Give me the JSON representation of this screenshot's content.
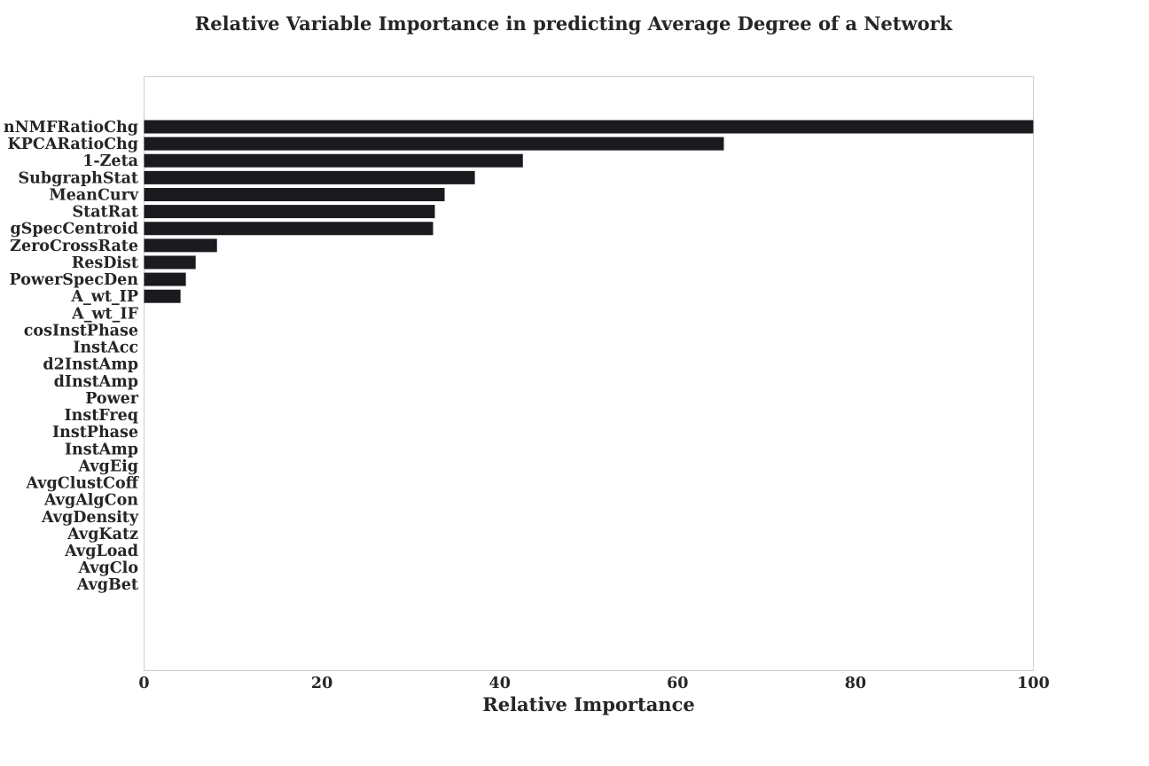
{
  "chart_data": {
    "type": "bar",
    "orientation": "horizontal",
    "title": "Relative Variable Importance in predicting Average Degree of a Network",
    "xlabel": "Relative Importance",
    "ylabel": "",
    "xlim": [
      0,
      100
    ],
    "xticks": [
      "0",
      "20",
      "40",
      "60",
      "80",
      "100"
    ],
    "grid": false,
    "bar_color": "#1a1a1f",
    "categories": [
      "nNMFRatioChg",
      "KPCARatioChg",
      "1-Zeta",
      "SubgraphStat",
      "MeanCurv",
      "StatRat",
      "gSpecCentroid",
      "ZeroCrossRate",
      "ResDist",
      "PowerSpecDen",
      "A_wt_IP",
      "A_wt_IF",
      "cosInstPhase",
      "InstAcc",
      "d2InstAmp",
      "dInstAmp",
      "Power",
      "InstFreq",
      "InstPhase",
      "InstAmp",
      "AvgEig",
      "AvgClustCoff",
      "AvgAlgCon",
      "AvgDensity",
      "AvgKatz",
      "AvgLoad",
      "AvgClo",
      "AvgBet"
    ],
    "values": [
      100,
      65.2,
      42.6,
      37.2,
      33.8,
      32.7,
      32.5,
      8.2,
      5.8,
      4.7,
      4.1,
      0,
      0,
      0,
      0,
      0,
      0,
      0,
      0,
      0,
      0,
      0,
      0,
      0,
      0,
      0,
      0,
      0
    ]
  }
}
